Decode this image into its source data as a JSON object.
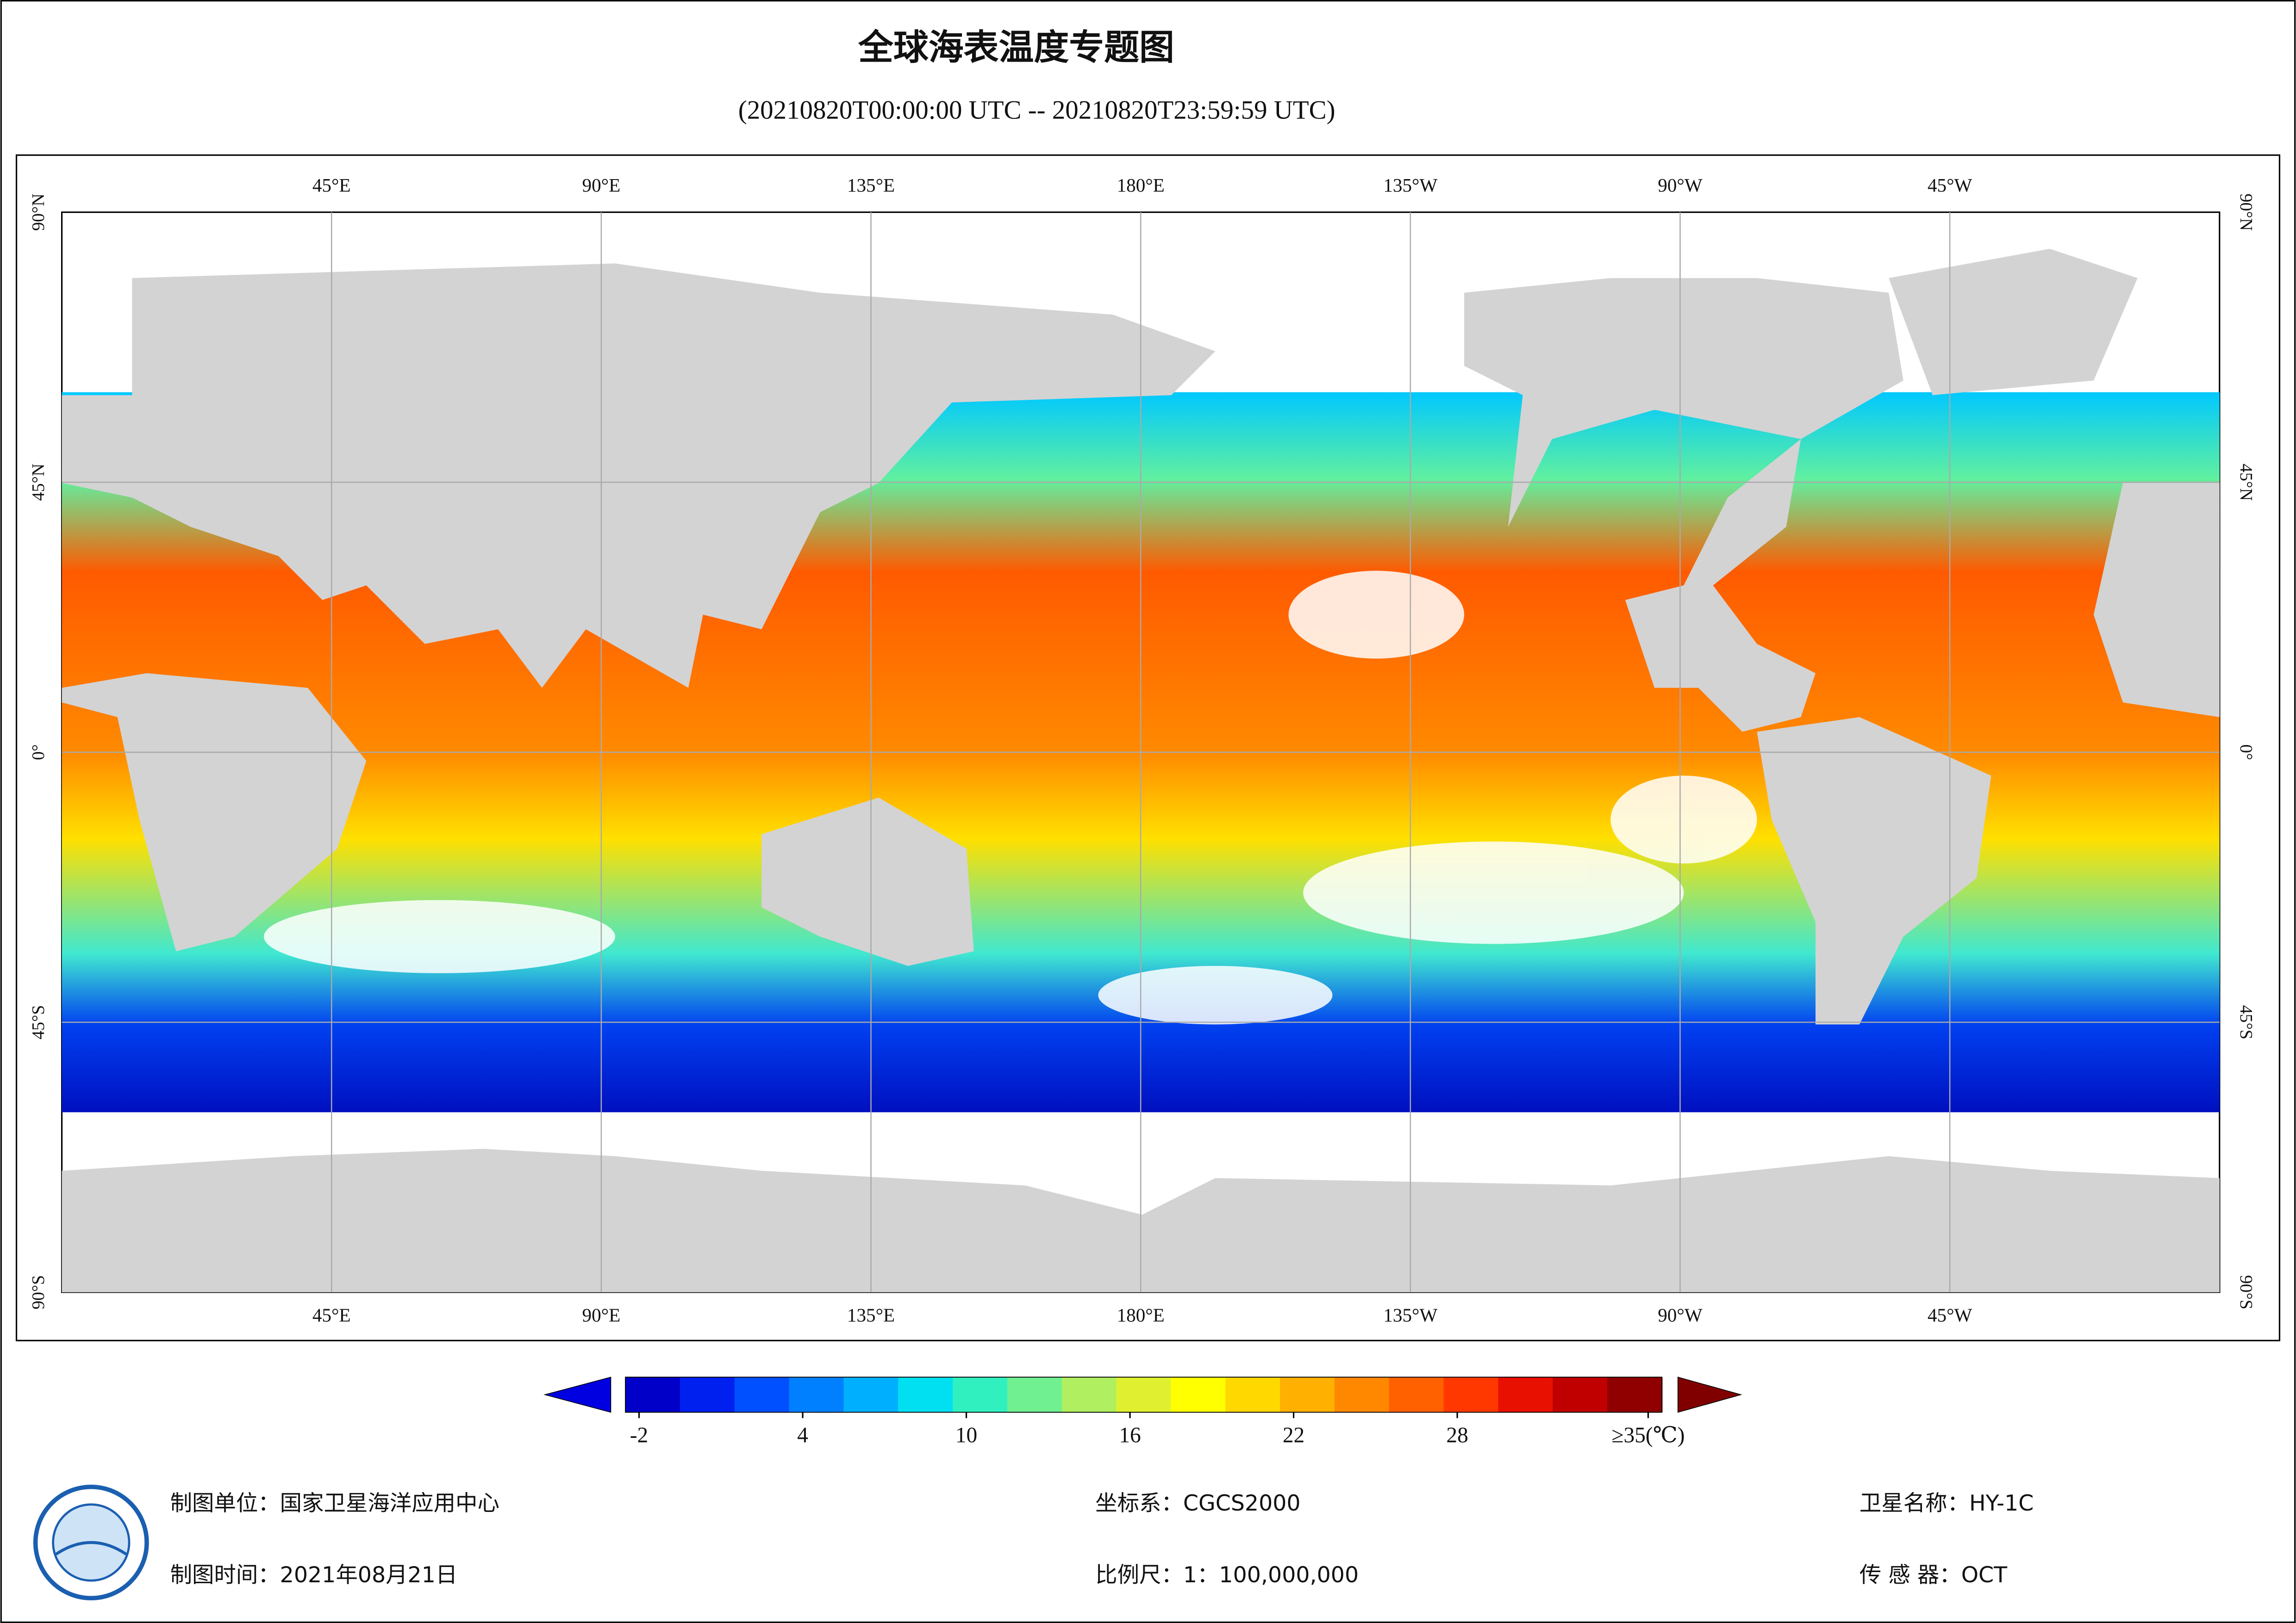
{
  "header": {
    "title": "全球海表温度专题图",
    "subtitle": "(20210820T00:00:00 UTC -- 20210820T23:59:59 UTC)"
  },
  "map": {
    "lon_labels": [
      "45°E",
      "90°E",
      "135°E",
      "180°E",
      "135°W",
      "90°W",
      "45°W"
    ],
    "lat_labels": [
      "90°N",
      "45°N",
      "0°",
      "45°S",
      "90°S"
    ]
  },
  "colorbar": {
    "range": [
      -2.5,
      35.5
    ],
    "ticks": [
      -2,
      4,
      10,
      16,
      22,
      28,
      {
        "value": 35,
        "label": "≥35(℃)"
      }
    ],
    "colors": [
      "#0000c8",
      "#0020f0",
      "#0050ff",
      "#0080ff",
      "#00b0ff",
      "#00e0f0",
      "#30f0c0",
      "#70f090",
      "#b0f060",
      "#e0f030",
      "#ffff00",
      "#ffd800",
      "#ffb000",
      "#ff8800",
      "#ff6000",
      "#ff3800",
      "#e81000",
      "#c00000",
      "#900000"
    ]
  },
  "footer": {
    "unit": "制图单位：国家卫星海洋应用中心",
    "coords": "坐标系：CGCS2000",
    "satellite": "卫星名称：HY-1C",
    "date": "制图时间：2021年08月21日",
    "scale": "比例尺：1：100,000,000",
    "sensor": "传 感 器：OCT"
  }
}
